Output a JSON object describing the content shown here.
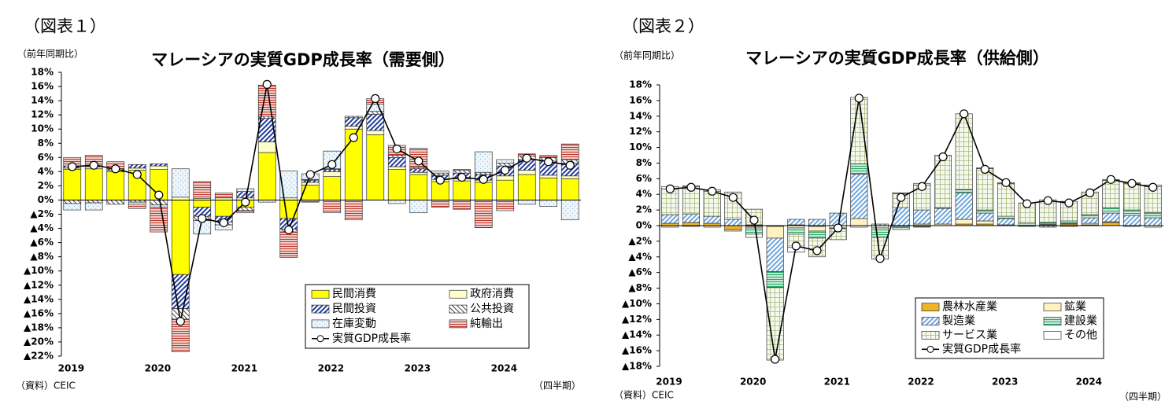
{
  "chart_data": [
    {
      "type": "bar",
      "stacked": true,
      "figure_label": "（図表１）",
      "title": "マレーシアの実質GDP成長率（需要側）",
      "ylabel": "（前年同期比）",
      "source": "（資料）CEIC",
      "xlabel": "（四半期）",
      "categories": [
        "2019",
        null,
        null,
        null,
        "2020",
        null,
        null,
        null,
        "2021",
        null,
        null,
        null,
        "2022",
        null,
        null,
        null,
        "2023",
        null,
        null,
        null,
        "2024",
        null,
        null,
        null
      ],
      "ylim": [
        -22,
        18
      ],
      "yticks": [
        {
          "value": 18,
          "label": "18%"
        },
        {
          "value": 16,
          "label": "16%"
        },
        {
          "value": 14,
          "label": "14%"
        },
        {
          "value": 12,
          "label": "12%"
        },
        {
          "value": 10,
          "label": "10%"
        },
        {
          "value": 8,
          "label": "8%"
        },
        {
          "value": 6,
          "label": "6%"
        },
        {
          "value": 4,
          "label": "4%"
        },
        {
          "value": 2,
          "label": "2%"
        },
        {
          "value": 0,
          "label": "0%"
        },
        {
          "value": -2,
          "label": "▲2%"
        },
        {
          "value": -4,
          "label": "▲4%"
        },
        {
          "value": -6,
          "label": "▲6%"
        },
        {
          "value": -8,
          "label": "▲8%"
        },
        {
          "value": -10,
          "label": "▲10%"
        },
        {
          "value": -12,
          "label": "▲12%"
        },
        {
          "value": -14,
          "label": "▲14%"
        },
        {
          "value": -16,
          "label": "▲16%"
        },
        {
          "value": -18,
          "label": "▲18%"
        },
        {
          "value": -20,
          "label": "▲20%"
        },
        {
          "value": -22,
          "label": "▲22%"
        }
      ],
      "legend": "lower-right",
      "series": [
        {
          "name": "民間消費",
          "color": "#ffff00",
          "pattern": "solid",
          "values": [
            4.3,
            4.4,
            4.0,
            4.2,
            4.3,
            -10.5,
            -1.0,
            -2.3,
            -1.0,
            6.7,
            -2.6,
            2.1,
            3.3,
            10.0,
            9.2,
            4.3,
            3.6,
            2.6,
            2.7,
            2.5,
            2.8,
            3.6,
            3.1,
            3.0
          ]
        },
        {
          "name": "政府消費",
          "color": "#ffffcc",
          "pattern": "solid",
          "values": [
            0.2,
            0.3,
            0.2,
            0.3,
            0.5,
            0.4,
            0.2,
            0.3,
            0.3,
            1.5,
            0.3,
            0.4,
            0.7,
            0.4,
            0.6,
            0.4,
            0.3,
            0.3,
            0.3,
            0.3,
            0.6,
            0.6,
            0.4,
            0.4
          ]
        },
        {
          "name": "民間投資",
          "color": "#1f3a9a",
          "pattern": "diagonal",
          "values": [
            0.3,
            0.2,
            0.2,
            0.5,
            0.3,
            -4.8,
            -1.3,
            -0.8,
            0.9,
            3.3,
            -1.5,
            0.3,
            0.3,
            1.2,
            2.3,
            1.3,
            0.5,
            0.6,
            0.8,
            0.8,
            1.4,
            1.5,
            2.0,
            1.8
          ]
        },
        {
          "name": "公共投資",
          "color": "#444444",
          "pattern": "backdiag",
          "values": [
            -0.5,
            -0.4,
            -0.6,
            -0.3,
            -0.7,
            -1.5,
            -0.6,
            -0.4,
            -0.5,
            0.3,
            -0.4,
            0.1,
            0.1,
            0.2,
            0.4,
            0.3,
            0.2,
            0.3,
            0.4,
            0.3,
            0.4,
            0.5,
            0.5,
            0.5
          ]
        },
        {
          "name": "在庫変動",
          "color": "#8fc3e3",
          "pattern": "dots",
          "values": [
            -0.9,
            -1.0,
            0.0,
            -0.3,
            -0.3,
            4.0,
            -1.9,
            -0.7,
            0.4,
            -0.3,
            3.8,
            0.8,
            2.5,
            0.0,
            1.0,
            -0.5,
            -1.8,
            0.3,
            0.1,
            2.9,
            0.5,
            -0.6,
            -0.9,
            -2.8
          ]
        },
        {
          "name": "純輸出",
          "color": "#c0392b",
          "pattern": "hlines",
          "values": [
            1.2,
            1.4,
            1.0,
            -0.6,
            -3.5,
            -4.6,
            2.4,
            0.7,
            -0.3,
            4.4,
            -3.6,
            -0.3,
            -1.8,
            -2.8,
            0.8,
            1.4,
            2.7,
            -1.0,
            -1.3,
            -3.9,
            -1.5,
            0.3,
            0.3,
            2.2
          ]
        },
        {
          "name": "実質GDP成長率",
          "type": "line",
          "color": "#000000",
          "values": [
            4.7,
            4.9,
            4.4,
            3.6,
            0.7,
            -17.1,
            -2.6,
            -3.2,
            -0.3,
            16.3,
            -4.2,
            3.6,
            5.0,
            8.8,
            14.3,
            7.2,
            5.5,
            2.8,
            3.2,
            2.9,
            4.2,
            5.9,
            5.4,
            4.9
          ]
        }
      ]
    },
    {
      "type": "bar",
      "stacked": true,
      "figure_label": "（図表２）",
      "title": "マレーシアの実質GDP成長率（供給側）",
      "ylabel": "（前年同期比）",
      "source": "（資料）CEIC",
      "xlabel": "（四半期）",
      "categories": [
        "2019",
        null,
        null,
        null,
        "2020",
        null,
        null,
        null,
        "2021",
        null,
        null,
        null,
        "2022",
        null,
        null,
        null,
        "2023",
        null,
        null,
        null,
        "2024",
        null,
        null,
        null
      ],
      "ylim": [
        -18,
        18
      ],
      "yticks": [
        {
          "value": 18,
          "label": "18%"
        },
        {
          "value": 16,
          "label": "16%"
        },
        {
          "value": 14,
          "label": "14%"
        },
        {
          "value": 12,
          "label": "12%"
        },
        {
          "value": 10,
          "label": "10%"
        },
        {
          "value": 8,
          "label": "8%"
        },
        {
          "value": 6,
          "label": "6%"
        },
        {
          "value": 4,
          "label": "4%"
        },
        {
          "value": 2,
          "label": "2%"
        },
        {
          "value": 0,
          "label": "0%"
        },
        {
          "value": -2,
          "label": "▲2%"
        },
        {
          "value": -4,
          "label": "▲4%"
        },
        {
          "value": -6,
          "label": "▲6%"
        },
        {
          "value": -8,
          "label": "▲8%"
        },
        {
          "value": -10,
          "label": "▲10%"
        },
        {
          "value": -12,
          "label": "▲12%"
        },
        {
          "value": -14,
          "label": "▲14%"
        },
        {
          "value": -16,
          "label": "▲16%"
        },
        {
          "value": -18,
          "label": "▲18%"
        }
      ],
      "legend": "lower-right",
      "series": [
        {
          "name": "農林水産業",
          "color": "#f0b429",
          "pattern": "solid",
          "values": [
            0.3,
            0.4,
            0.3,
            -0.5,
            -0.1,
            -0.1,
            0.1,
            -0.1,
            0.0,
            0.0,
            0.0,
            -0.1,
            -0.1,
            0.0,
            0.2,
            0.2,
            0.0,
            0.0,
            0.1,
            0.2,
            0.1,
            0.4,
            0.0,
            0.0
          ]
        },
        {
          "name": "鉱業",
          "color": "#fff2bf",
          "pattern": "solid",
          "values": [
            -0.2,
            -0.1,
            -0.2,
            -0.2,
            -0.2,
            -1.5,
            -0.3,
            -0.6,
            -0.3,
            0.9,
            -0.3,
            0.0,
            0.2,
            0.2,
            0.6,
            0.4,
            0.1,
            -0.1,
            0.1,
            0.1,
            0.2,
            0.1,
            -0.1,
            -0.2
          ]
        },
        {
          "name": "製造業",
          "color": "#6fa6dc",
          "pattern": "diagonal",
          "values": [
            1.1,
            1.1,
            0.9,
            0.8,
            0.1,
            -4.3,
            0.7,
            0.8,
            1.6,
            5.7,
            0.2,
            2.3,
            1.8,
            2.0,
            3.4,
            1.0,
            0.8,
            0.0,
            -0.2,
            -0.1,
            0.7,
            1.1,
            1.3,
            1.0
          ]
        },
        {
          "name": "建設業",
          "color": "#27a765",
          "pattern": "hlines",
          "values": [
            0.0,
            0.0,
            0.0,
            0.0,
            -0.8,
            -2.0,
            -0.8,
            -0.9,
            -0.1,
            1.3,
            -1.2,
            -0.4,
            -0.1,
            0.1,
            0.4,
            0.4,
            0.3,
            0.3,
            0.2,
            0.3,
            0.4,
            0.7,
            0.7,
            0.7
          ]
        },
        {
          "name": "サービス業",
          "color": "#a9b97a",
          "pattern": "grid",
          "values": [
            3.3,
            3.5,
            3.2,
            3.5,
            2.0,
            -9.3,
            -1.7,
            -2.4,
            -1.4,
            8.5,
            -2.8,
            1.8,
            3.2,
            6.7,
            9.7,
            5.3,
            4.2,
            2.6,
            2.9,
            2.5,
            2.9,
            3.5,
            3.4,
            3.3
          ]
        },
        {
          "name": "その他",
          "color": "#ffffff",
          "pattern": "solid",
          "values": [
            0.3,
            0.1,
            0.2,
            0.0,
            -0.4,
            0.0,
            -0.6,
            0.0,
            0.0,
            -0.2,
            0.0,
            0.1,
            0.2,
            0.0,
            0.0,
            0.1,
            0.1,
            0.0,
            0.0,
            0.0,
            0.0,
            0.1,
            0.1,
            0.2
          ]
        },
        {
          "name": "実質GDP成長率",
          "type": "line",
          "color": "#000000",
          "values": [
            4.7,
            4.9,
            4.4,
            3.6,
            0.7,
            -17.1,
            -2.6,
            -3.2,
            -0.3,
            16.3,
            -4.2,
            3.6,
            5.0,
            8.8,
            14.3,
            7.2,
            5.5,
            2.8,
            3.2,
            2.9,
            4.2,
            5.9,
            5.4,
            4.9
          ]
        }
      ]
    }
  ]
}
